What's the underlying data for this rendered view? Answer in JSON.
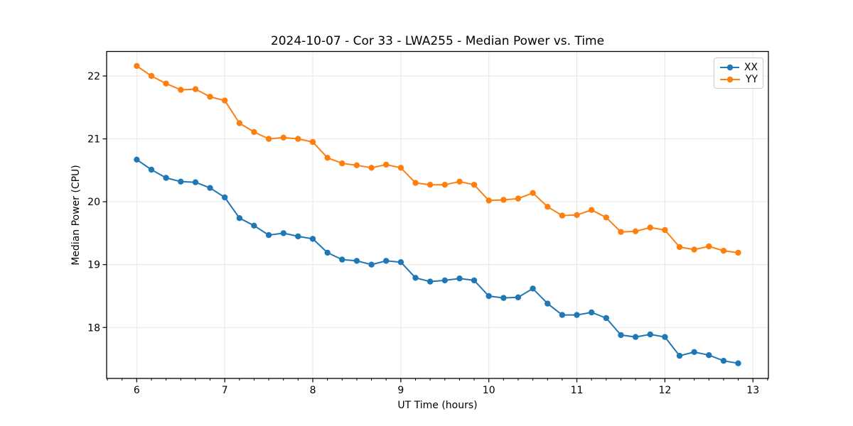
{
  "chart_data": {
    "type": "line",
    "title": "2024-10-07 - Cor 33 - LWA255 - Median Power vs. Time",
    "xlabel": "UT Time (hours)",
    "ylabel": "Median Power (CPU)",
    "xlim": [
      5.658,
      13.176
    ],
    "ylim": [
      17.19,
      22.39
    ],
    "x_ticks": [
      6,
      7,
      8,
      9,
      10,
      11,
      12,
      13
    ],
    "y_ticks": [
      18,
      19,
      20,
      21,
      22
    ],
    "x_minor_tick_interval": 0.1667,
    "grid": true,
    "legend_position": "upper right",
    "colors": {
      "grid": "#e6e6e6",
      "spine": "#000000",
      "tick": "#000000",
      "background": "#ffffff"
    },
    "x": [
      6.0,
      6.167,
      6.333,
      6.5,
      6.667,
      6.833,
      7.0,
      7.167,
      7.333,
      7.5,
      7.667,
      7.833,
      8.0,
      8.167,
      8.333,
      8.5,
      8.667,
      8.833,
      9.0,
      9.167,
      9.333,
      9.5,
      9.667,
      9.833,
      10.0,
      10.167,
      10.333,
      10.5,
      10.667,
      10.833,
      11.0,
      11.167,
      11.333,
      11.5,
      11.667,
      11.833,
      12.0,
      12.167,
      12.333,
      12.5,
      12.667,
      12.833
    ],
    "series": [
      {
        "name": "XX",
        "color": "#1f77b4",
        "values": [
          20.67,
          20.51,
          20.38,
          20.32,
          20.31,
          20.22,
          20.07,
          19.74,
          19.62,
          19.47,
          19.5,
          19.45,
          19.41,
          19.19,
          19.08,
          19.06,
          19.0,
          19.06,
          19.04,
          18.79,
          18.73,
          18.75,
          18.78,
          18.75,
          18.5,
          18.47,
          18.48,
          18.62,
          18.38,
          18.2,
          18.2,
          18.24,
          18.15,
          17.88,
          17.85,
          17.89,
          17.85,
          17.55,
          17.61,
          17.56,
          17.47,
          17.43
        ]
      },
      {
        "name": "YY",
        "color": "#ff7f0e",
        "values": [
          22.16,
          22.0,
          21.88,
          21.78,
          21.79,
          21.67,
          21.61,
          21.25,
          21.11,
          21.0,
          21.02,
          21.0,
          20.95,
          20.7,
          20.61,
          20.58,
          20.54,
          20.59,
          20.54,
          20.3,
          20.27,
          20.27,
          20.32,
          20.27,
          20.02,
          20.03,
          20.05,
          20.14,
          19.92,
          19.78,
          19.79,
          19.87,
          19.75,
          19.52,
          19.53,
          19.59,
          19.55,
          19.28,
          19.24,
          19.29,
          19.22,
          19.19
        ]
      }
    ]
  }
}
